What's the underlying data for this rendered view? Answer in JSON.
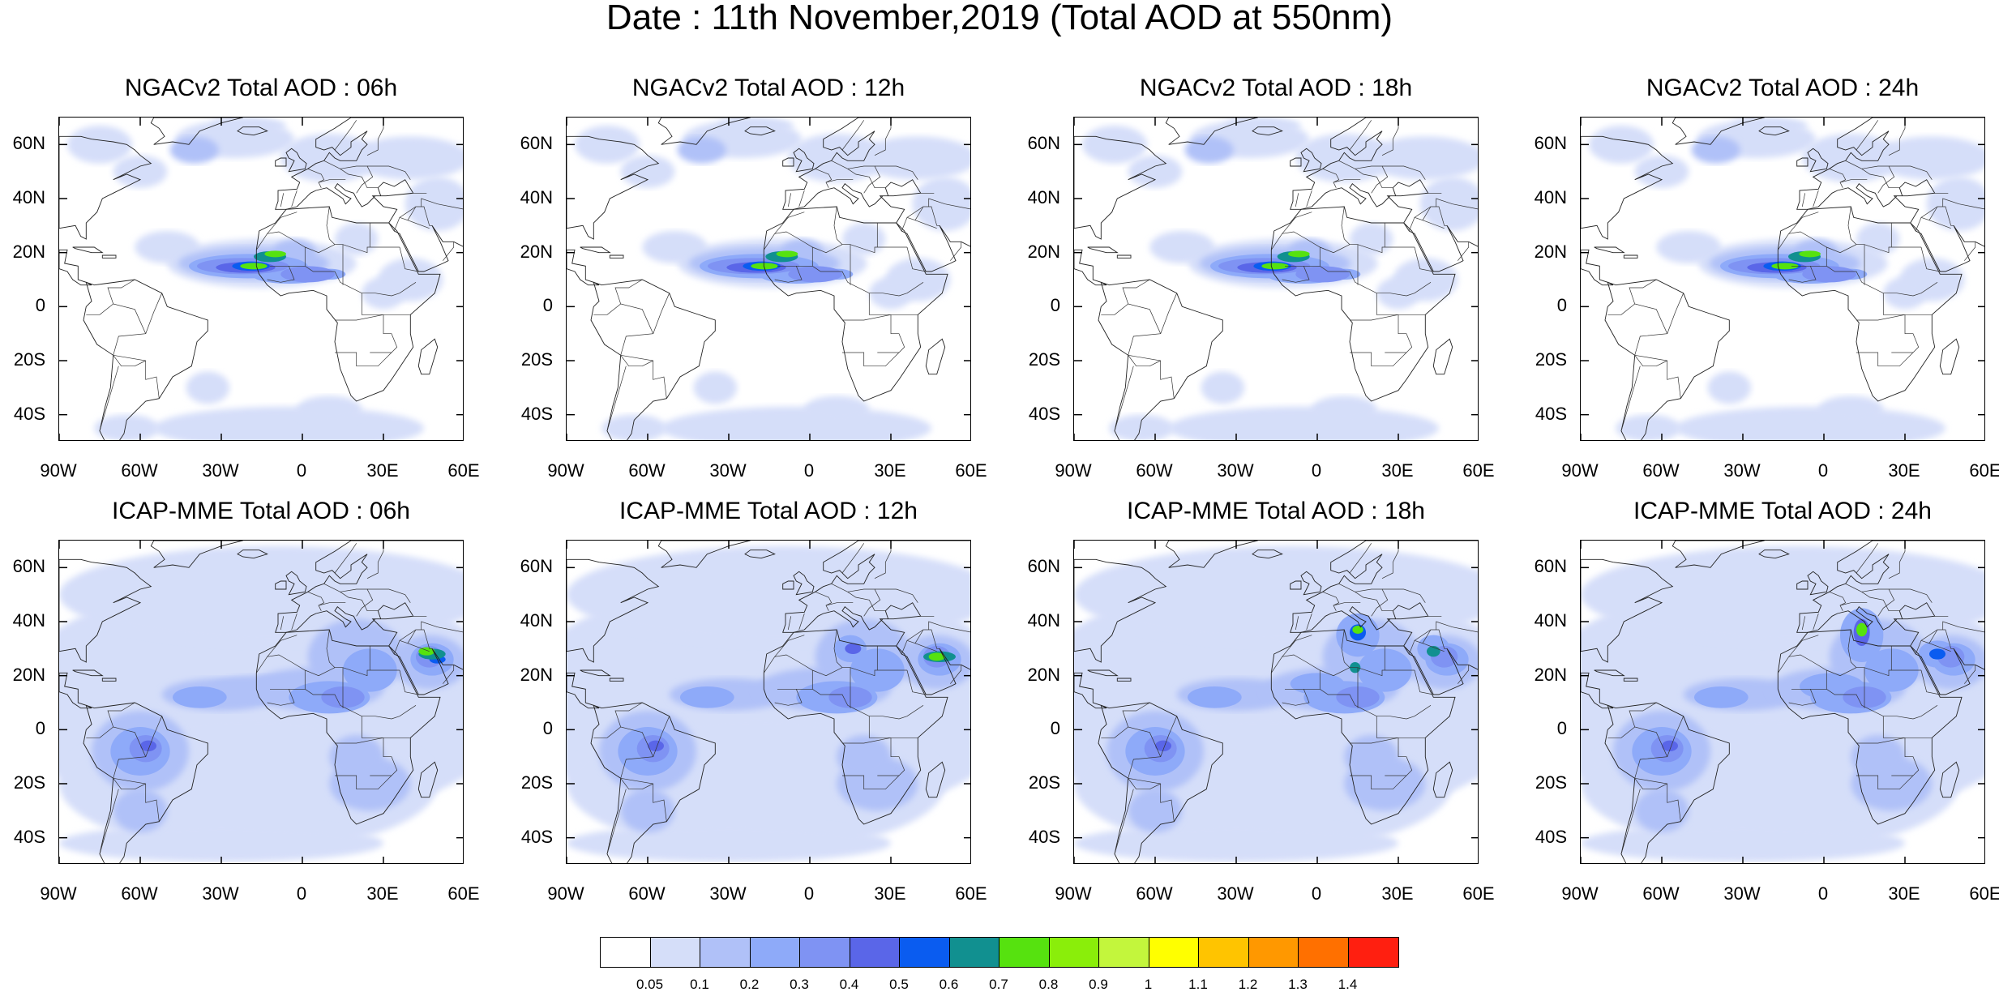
{
  "title": "Date : 11th November,2019 (Total AOD at 550nm)",
  "panels": [
    {
      "title": "NGACv2 Total AOD : 06h"
    },
    {
      "title": "NGACv2 Total AOD : 12h"
    },
    {
      "title": "NGACv2 Total AOD : 18h"
    },
    {
      "title": "NGACv2 Total AOD : 24h"
    },
    {
      "title": "ICAP-MME Total AOD : 06h"
    },
    {
      "title": "ICAP-MME Total AOD : 12h"
    },
    {
      "title": "ICAP-MME Total AOD : 18h"
    },
    {
      "title": "ICAP-MME Total AOD : 24h"
    }
  ],
  "axes": {
    "lat_labels": [
      "60N",
      "40N",
      "20N",
      "0",
      "20S",
      "40S"
    ],
    "lon_labels": [
      "90W",
      "60W",
      "30W",
      "0",
      "30E",
      "60E"
    ],
    "lat_range": [
      -50,
      70
    ],
    "lon_range": [
      -90,
      60
    ]
  },
  "colorbar": {
    "colors": [
      "#ffffff",
      "#d5def9",
      "#b0c1f8",
      "#8eaaf9",
      "#7f93f3",
      "#5a66e8",
      "#0a5cf0",
      "#119090",
      "#56e20f",
      "#8aee0a",
      "#c3f63c",
      "#ffff00",
      "#ffc400",
      "#ff9800",
      "#ff7000",
      "#ff1f10"
    ],
    "labels": [
      "0.05",
      "0.1",
      "0.2",
      "0.3",
      "0.4",
      "0.5",
      "0.6",
      "0.7",
      "0.8",
      "0.9",
      "1",
      "1.1",
      "1.2",
      "1.3",
      "1.4"
    ]
  }
}
